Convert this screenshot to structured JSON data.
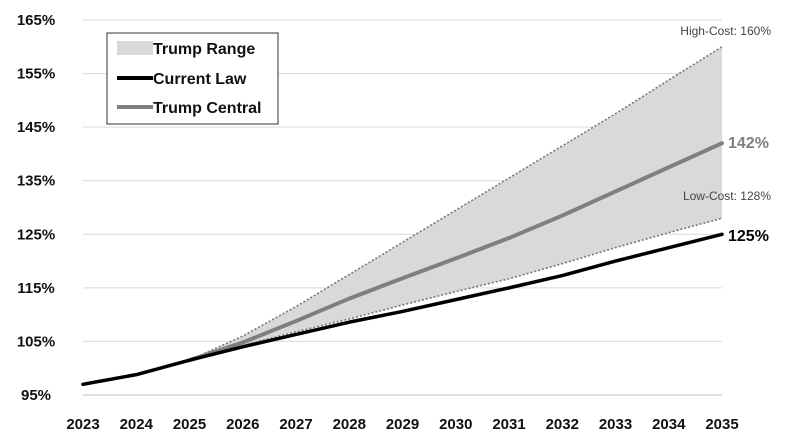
{
  "chart_data": {
    "type": "line",
    "x": [
      2023,
      2024,
      2025,
      2026,
      2027,
      2028,
      2029,
      2030,
      2031,
      2032,
      2033,
      2034,
      2035
    ],
    "x_tick_labels": [
      "2023",
      "2024",
      "2025",
      "2026",
      "2027",
      "2028",
      "2029",
      "2030",
      "2031",
      "2032",
      "2033",
      "2034",
      "2035"
    ],
    "y_tick_labels": [
      "95%",
      "105%",
      "115%",
      "125%",
      "135%",
      "145%",
      "155%",
      "165%"
    ],
    "y_ticks": [
      95,
      105,
      115,
      125,
      135,
      145,
      155,
      165
    ],
    "ylim": [
      95,
      165
    ],
    "grid": "horizontal",
    "legend_position": "top-left",
    "range": {
      "name": "Trump Range",
      "color": "#d9d9d9",
      "x": [
        2025,
        2026,
        2027,
        2028,
        2029,
        2030,
        2031,
        2032,
        2033,
        2034,
        2035
      ],
      "low": [
        101.5,
        104.2,
        106.8,
        109.2,
        111.8,
        114.3,
        116.7,
        119.5,
        122.5,
        125.3,
        128.0
      ],
      "high": [
        101.5,
        106.0,
        111.5,
        117.5,
        123.5,
        129.5,
        135.5,
        141.5,
        147.5,
        153.8,
        160.0
      ]
    },
    "series": [
      {
        "name": "Current Law",
        "color": "#000000",
        "x": [
          2023,
          2024,
          2025,
          2026,
          2027,
          2028,
          2029,
          2030,
          2031,
          2032,
          2033,
          2034,
          2035
        ],
        "values": [
          97.0,
          98.8,
          101.5,
          104.0,
          106.3,
          108.6,
          110.6,
          112.8,
          115.0,
          117.3,
          120.0,
          122.5,
          125.0
        ]
      },
      {
        "name": "Trump Central",
        "color": "#7f7f7f",
        "x": [
          2025,
          2026,
          2027,
          2028,
          2029,
          2030,
          2031,
          2032,
          2033,
          2034,
          2035
        ],
        "values": [
          101.5,
          104.8,
          108.8,
          113.0,
          116.8,
          120.5,
          124.3,
          128.5,
          133.0,
          137.5,
          142.0
        ]
      }
    ],
    "annotations": {
      "high_cost": "High-Cost: 160%",
      "low_cost": "Low-Cost: 128%",
      "central_end": "142%",
      "current_end": "125%"
    }
  }
}
